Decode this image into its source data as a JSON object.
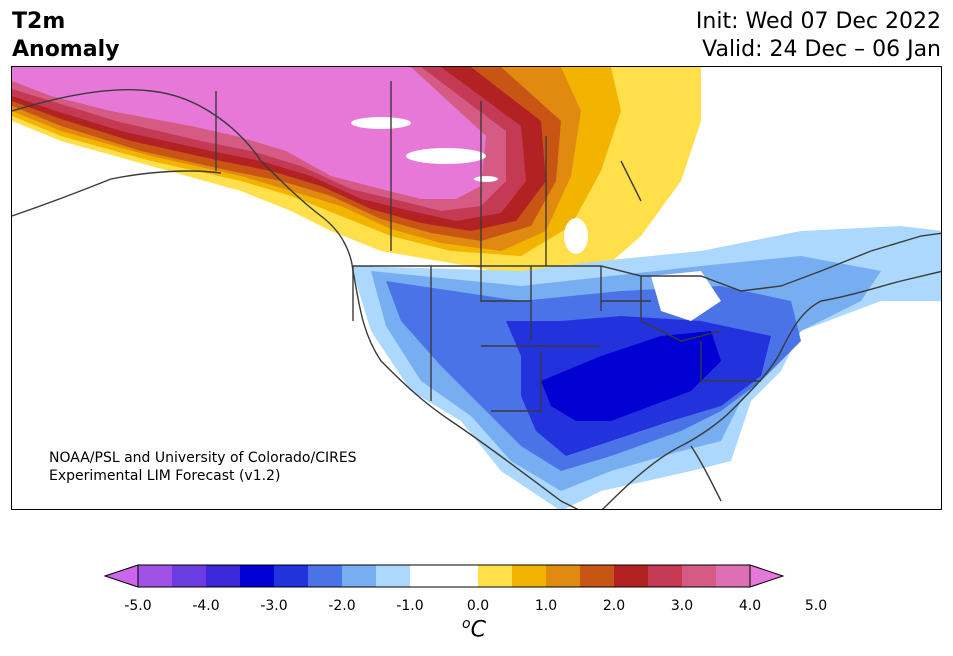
{
  "title": {
    "line1": "T2m",
    "line2": "Anomaly"
  },
  "dates": {
    "init": "Init: Wed 07 Dec 2022",
    "valid": "Valid: 24 Dec – 06 Jan"
  },
  "credit": {
    "line1": "NOAA/PSL and University of Colorado/CIRES",
    "line2": "Experimental LIM Forecast (v1.2)"
  },
  "colorbar": {
    "ticks": [
      "-5.0",
      "-4.0",
      "-3.0",
      "-2.0",
      "-1.0",
      "0.0",
      "1.0",
      "2.0",
      "3.0",
      "4.0",
      "5.0"
    ],
    "unit_sup": "o",
    "unit": "C",
    "colors": [
      "#cc66ee",
      "#9f52e3",
      "#6b3de0",
      "#3d28d8",
      "#0000d2",
      "#2233dd",
      "#4a73e8",
      "#77aef2",
      "#abd8fc",
      "#ffffff",
      "#ffffff",
      "#ffe04a",
      "#f2b400",
      "#e08a10",
      "#c85514",
      "#b22222",
      "#c43a55",
      "#d55b85",
      "#de6fb5",
      "#e878d8"
    ]
  }
}
